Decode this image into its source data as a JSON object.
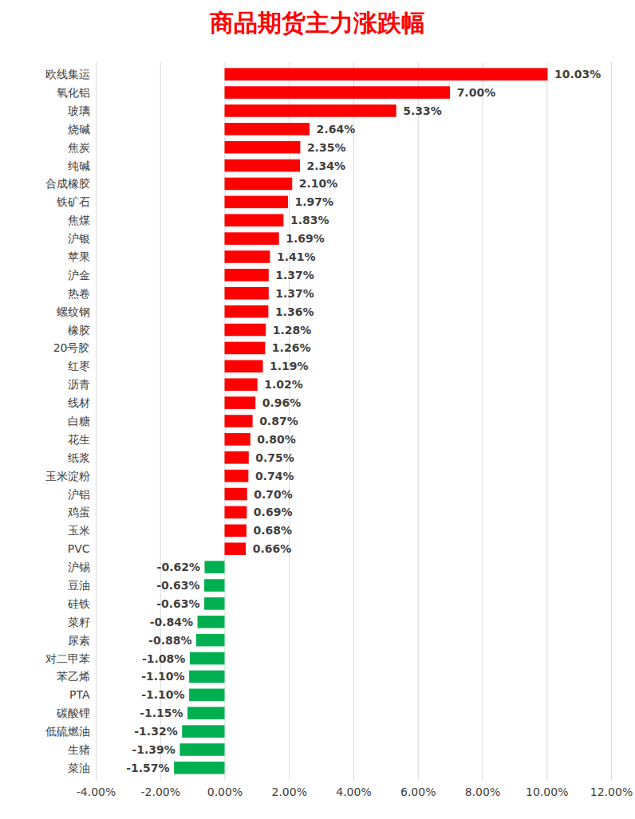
{
  "chart_data": {
    "type": "bar",
    "title": "商品期货主力涨跌幅",
    "orientation": "horizontal",
    "categories": [
      "欧线集运",
      "氧化铝",
      "玻璃",
      "烧碱",
      "焦炭",
      "纯碱",
      "合成橡胶",
      "铁矿石",
      "焦煤",
      "沪银",
      "苹果",
      "沪金",
      "热卷",
      "螺纹钢",
      "橡胶",
      "20号胶",
      "红枣",
      "沥青",
      "线材",
      "白糖",
      "花生",
      "纸浆",
      "玉米淀粉",
      "沪铝",
      "鸡蛋",
      "玉米",
      "PVC",
      "沪锡",
      "豆油",
      "硅铁",
      "菜籽",
      "尿素",
      "对二甲苯",
      "苯乙烯",
      "PTA",
      "碳酸锂",
      "低硫燃油",
      "生猪",
      "菜油"
    ],
    "values": [
      10.03,
      7.0,
      5.33,
      2.64,
      2.35,
      2.34,
      2.1,
      1.97,
      1.83,
      1.69,
      1.41,
      1.37,
      1.37,
      1.36,
      1.28,
      1.26,
      1.19,
      1.02,
      0.96,
      0.87,
      0.8,
      0.75,
      0.74,
      0.7,
      0.69,
      0.68,
      0.66,
      -0.62,
      -0.63,
      -0.63,
      -0.84,
      -0.88,
      -1.08,
      -1.1,
      -1.1,
      -1.15,
      -1.32,
      -1.39,
      -1.57
    ],
    "value_labels": [
      "10.03%",
      "7.00%",
      "5.33%",
      "2.64%",
      "2.35%",
      "2.34%",
      "2.10%",
      "1.97%",
      "1.83%",
      "1.69%",
      "1.41%",
      "1.37%",
      "1.37%",
      "1.36%",
      "1.28%",
      "1.26%",
      "1.19%",
      "1.02%",
      "0.96%",
      "0.87%",
      "0.80%",
      "0.75%",
      "0.74%",
      "0.70%",
      "0.69%",
      "0.68%",
      "0.66%",
      "-0.62%",
      "-0.63%",
      "-0.63%",
      "-0.84%",
      "-0.88%",
      "-1.08%",
      "-1.10%",
      "-1.10%",
      "-1.15%",
      "-1.32%",
      "-1.39%",
      "-1.57%"
    ],
    "colors": [
      "#ff0000",
      "#ff0000",
      "#ff0000",
      "#ff0000",
      "#ff0000",
      "#ff0000",
      "#ff0000",
      "#ff0000",
      "#ff0000",
      "#ff0000",
      "#ff0000",
      "#ff0000",
      "#ff0000",
      "#ff0000",
      "#ff0000",
      "#ff0000",
      "#ff0000",
      "#ff0000",
      "#ff0000",
      "#ff0000",
      "#ff0000",
      "#ff0000",
      "#ff0000",
      "#ff0000",
      "#ff0000",
      "#ff0000",
      "#ff0000",
      "#00b050",
      "#00b050",
      "#00b050",
      "#00b050",
      "#00b050",
      "#00b050",
      "#00b050",
      "#00b050",
      "#00b050",
      "#00b050",
      "#00b050",
      "#00b050"
    ],
    "data_labels": true,
    "xlim": [
      -4,
      12
    ],
    "xticks": [
      {
        "value": -4,
        "label": "-4.00%"
      },
      {
        "value": -2,
        "label": "-2.00%"
      },
      {
        "value": 0,
        "label": "0.00%"
      },
      {
        "value": 2,
        "label": "2.00%"
      },
      {
        "value": 4,
        "label": "4.00%"
      },
      {
        "value": 6,
        "label": "6.00%"
      },
      {
        "value": 8,
        "label": "8.00%"
      },
      {
        "value": 10,
        "label": "10.00%"
      },
      {
        "value": 12,
        "label": "12.00%"
      }
    ],
    "grid": true
  }
}
